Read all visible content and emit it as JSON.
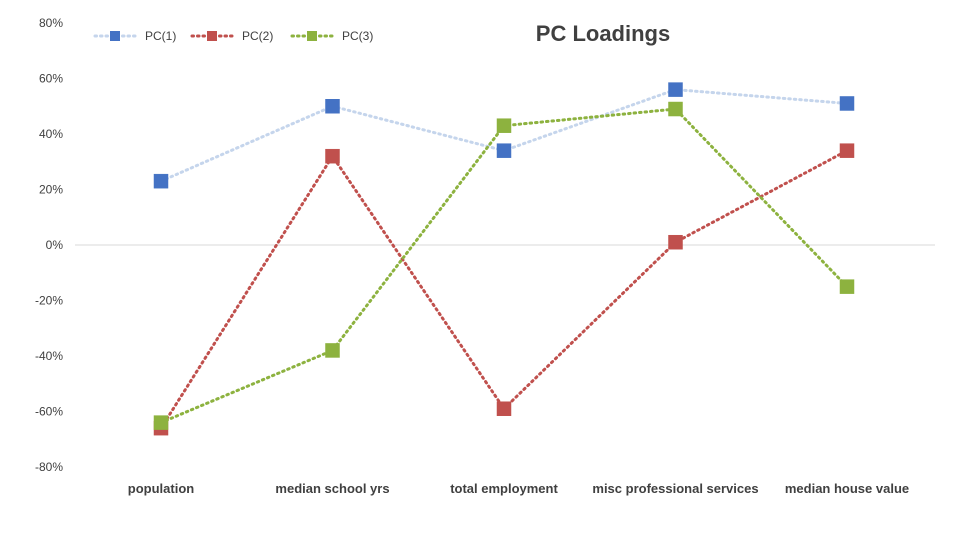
{
  "chart_data": {
    "type": "line",
    "title": "PC Loadings",
    "xlabel": "",
    "ylabel": "",
    "categories": [
      "population",
      "median school yrs",
      "total employment",
      "misc professional services",
      "median house value"
    ],
    "ylim": [
      -0.8,
      0.8
    ],
    "yticks": [
      0.8,
      0.6,
      0.4,
      0.2,
      0,
      -0.2,
      -0.4,
      -0.6,
      -0.8
    ],
    "ytick_labels": [
      "80%",
      "60%",
      "40%",
      "20%",
      "0%",
      "-20%",
      "-40%",
      "-60%",
      "-80%"
    ],
    "grid": false,
    "legend_position": "top-left",
    "series": [
      {
        "name": "PC(1)",
        "color": "#4472C4",
        "line_color": "#C5D5EC",
        "values": [
          0.23,
          0.5,
          0.34,
          0.56,
          0.51
        ]
      },
      {
        "name": "PC(2)",
        "color": "#C0504D",
        "line_color": "#C0504D",
        "values": [
          -0.66,
          0.32,
          -0.59,
          0.01,
          0.34
        ]
      },
      {
        "name": "PC(3)",
        "color": "#8DB23F",
        "line_color": "#8DB23F",
        "values": [
          -0.64,
          -0.38,
          0.43,
          0.49,
          -0.15
        ]
      }
    ]
  }
}
